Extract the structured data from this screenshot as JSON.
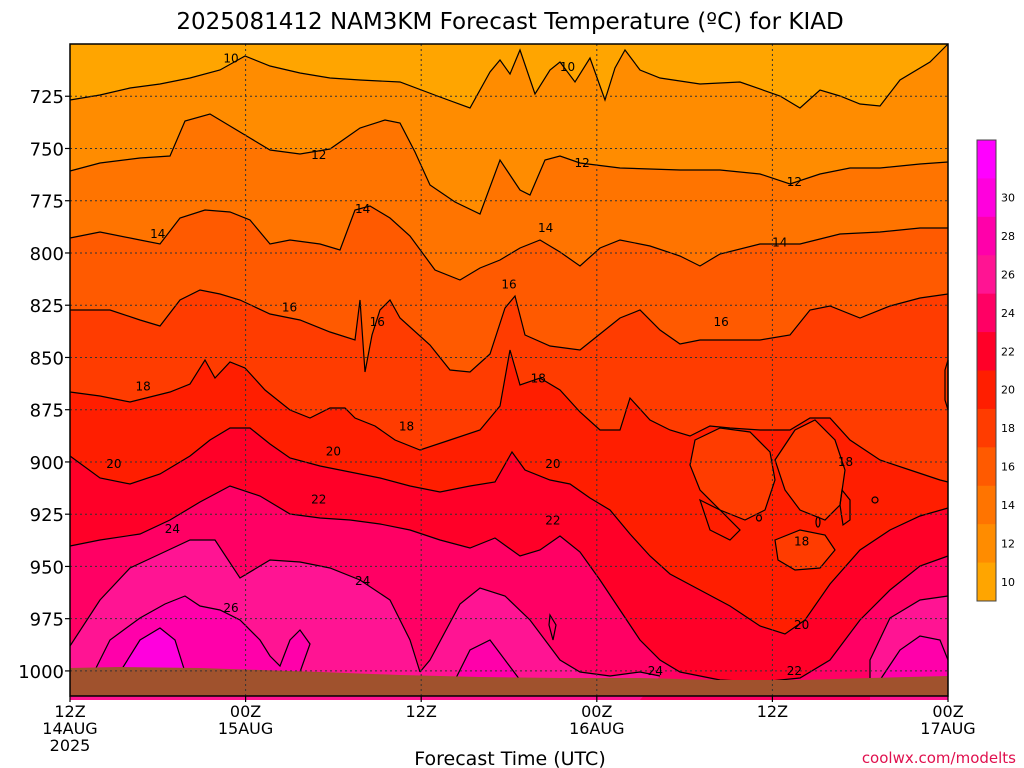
{
  "chart_data": {
    "type": "heatmap",
    "title": "2025081412 NAM3KM Forecast Temperature (ºC) for KIAD",
    "xlabel": "Forecast Time (UTC)",
    "ylabel": "",
    "credit": "coolwx.com/modelts",
    "x_ticks": [
      {
        "hour": 0,
        "label1": "12Z",
        "label2": "14AUG",
        "label3": "2025"
      },
      {
        "hour": 12,
        "label1": "00Z",
        "label2": "15AUG",
        "label3": ""
      },
      {
        "hour": 24,
        "label1": "12Z",
        "label2": "",
        "label3": ""
      },
      {
        "hour": 36,
        "label1": "00Z",
        "label2": "16AUG",
        "label3": ""
      },
      {
        "hour": 48,
        "label1": "12Z",
        "label2": "",
        "label3": ""
      },
      {
        "hour": 60,
        "label1": "00Z",
        "label2": "17AUG",
        "label3": ""
      }
    ],
    "x_range_hours": [
      0,
      60
    ],
    "y_ticks": [
      725,
      750,
      775,
      800,
      825,
      850,
      875,
      900,
      925,
      950,
      975,
      1000
    ],
    "y_range_hPa": [
      700,
      1012
    ],
    "colorbar": {
      "levels": [
        10,
        12,
        14,
        16,
        18,
        20,
        22,
        24,
        26,
        28,
        30
      ],
      "colors": [
        "#FFA500",
        "#FF8C00",
        "#FF7400",
        "#FF5A00",
        "#FF3C00",
        "#FF1E00",
        "#FF0028",
        "#FF0064",
        "#FF1493",
        "#FF00AA",
        "#FF00DD",
        "#FF00FF"
      ]
    },
    "contour_labels": [
      {
        "text": "10",
        "hour": 11.0,
        "p": 707
      },
      {
        "text": "10",
        "hour": 34.0,
        "p": 711
      },
      {
        "text": "12",
        "hour": 17.0,
        "p": 753
      },
      {
        "text": "12",
        "hour": 35.0,
        "p": 757
      },
      {
        "text": "12",
        "hour": 49.5,
        "p": 766
      },
      {
        "text": "14",
        "hour": 6.0,
        "p": 791
      },
      {
        "text": "14",
        "hour": 20.0,
        "p": 779
      },
      {
        "text": "14",
        "hour": 32.5,
        "p": 788
      },
      {
        "text": "14",
        "hour": 48.5,
        "p": 795
      },
      {
        "text": "16",
        "hour": 15.0,
        "p": 826
      },
      {
        "text": "16",
        "hour": 21.0,
        "p": 833
      },
      {
        "text": "16",
        "hour": 30.0,
        "p": 815
      },
      {
        "text": "16",
        "hour": 44.5,
        "p": 833
      },
      {
        "text": "18",
        "hour": 5.0,
        "p": 864
      },
      {
        "text": "18",
        "hour": 32.0,
        "p": 860
      },
      {
        "text": "18",
        "hour": 23.0,
        "p": 883
      },
      {
        "text": "18",
        "hour": 53.0,
        "p": 900
      },
      {
        "text": "18",
        "hour": 50.0,
        "p": 938
      },
      {
        "text": "20",
        "hour": 3.0,
        "p": 901
      },
      {
        "text": "20",
        "hour": 18.0,
        "p": 895
      },
      {
        "text": "20",
        "hour": 33.0,
        "p": 901
      },
      {
        "text": "20",
        "hour": 50.0,
        "p": 978
      },
      {
        "text": "22",
        "hour": 17.0,
        "p": 918
      },
      {
        "text": "22",
        "hour": 33.0,
        "p": 928
      },
      {
        "text": "22",
        "hour": 49.5,
        "p": 1000
      },
      {
        "text": "24",
        "hour": 7.0,
        "p": 932
      },
      {
        "text": "24",
        "hour": 20.0,
        "p": 957
      },
      {
        "text": "24",
        "hour": 40.0,
        "p": 1000
      },
      {
        "text": "26",
        "hour": 11.0,
        "p": 970
      }
    ]
  }
}
